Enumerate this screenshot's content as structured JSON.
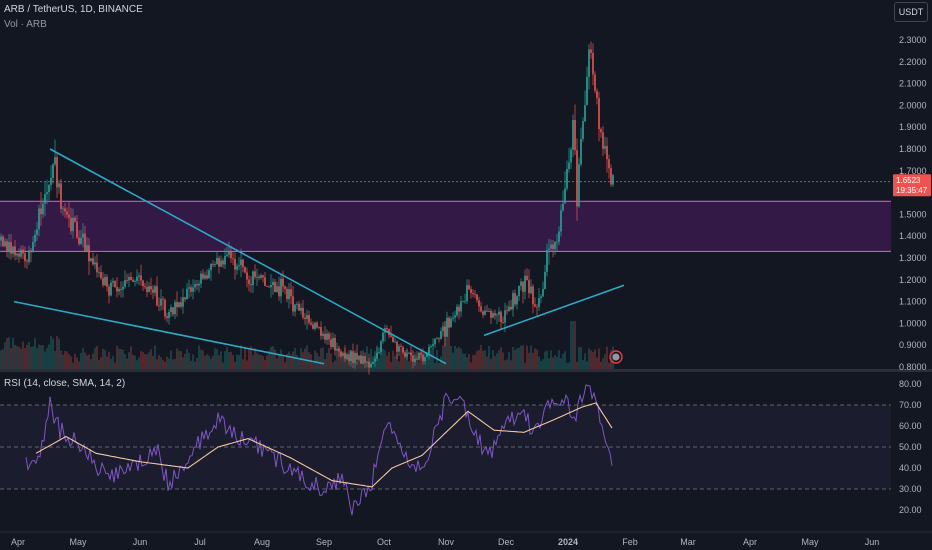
{
  "header": {
    "symbol": "ARB / TetherUS, 1D, BINANCE",
    "volume_label": "Vol · ARB",
    "currency": "USDT"
  },
  "rsi_panel": {
    "label": "RSI (14, close, SMA, 14, 2)"
  },
  "current_price": {
    "price": "1.6523",
    "countdown": "19:35:47"
  },
  "colors": {
    "background": "#131722",
    "up": "#26a69a",
    "down": "#ef5350",
    "trendline": "#2fa8c8",
    "zone_fill": "#3a1a4c",
    "zone_line": "#d24fd0",
    "rsi": "#7e57c2",
    "rsi_ma": "#f3c6a0"
  },
  "chart_data": [
    {
      "type": "candlestick",
      "title": "ARB / TetherUS, 1D, BINANCE",
      "y_ticks": [
        "2.3000",
        "2.2000",
        "2.1000",
        "2.0000",
        "1.9000",
        "1.8000",
        "1.7000",
        "1.5000",
        "1.4000",
        "1.3000",
        "1.2000",
        "1.1000",
        "1.0000",
        "0.9000",
        "0.8000"
      ],
      "x_ticks": [
        "Apr",
        "May",
        "Jun",
        "Jul",
        "Aug",
        "Sep",
        "Oct",
        "Nov",
        "Dec",
        "2024",
        "Feb",
        "Mar",
        "Apr",
        "May",
        "Jun"
      ],
      "ylim": [
        0.8,
        2.42
      ],
      "approx_close_path": [
        {
          "date": "2023-03-23",
          "value": 1.38
        },
        {
          "date": "2023-04-05",
          "value": 1.3
        },
        {
          "date": "2023-04-15",
          "value": 1.62
        },
        {
          "date": "2023-04-18",
          "value": 1.75
        },
        {
          "date": "2023-04-23",
          "value": 1.52
        },
        {
          "date": "2023-05-01",
          "value": 1.4
        },
        {
          "date": "2023-05-15",
          "value": 1.17
        },
        {
          "date": "2023-06-05",
          "value": 1.19
        },
        {
          "date": "2023-06-15",
          "value": 1.03
        },
        {
          "date": "2023-06-25",
          "value": 1.16
        },
        {
          "date": "2023-07-15",
          "value": 1.32
        },
        {
          "date": "2023-07-25",
          "value": 1.22
        },
        {
          "date": "2023-08-10",
          "value": 1.16
        },
        {
          "date": "2023-08-25",
          "value": 1.01
        },
        {
          "date": "2023-09-10",
          "value": 0.86
        },
        {
          "date": "2023-09-25",
          "value": 0.82
        },
        {
          "date": "2023-10-01",
          "value": 0.96
        },
        {
          "date": "2023-10-10",
          "value": 0.87
        },
        {
          "date": "2023-10-20",
          "value": 0.84
        },
        {
          "date": "2023-11-05",
          "value": 1.04
        },
        {
          "date": "2023-11-12",
          "value": 1.15
        },
        {
          "date": "2023-11-20",
          "value": 1.05
        },
        {
          "date": "2023-11-28",
          "value": 1.03
        },
        {
          "date": "2023-12-05",
          "value": 1.12
        },
        {
          "date": "2023-12-10",
          "value": 1.21
        },
        {
          "date": "2023-12-15",
          "value": 1.09
        },
        {
          "date": "2023-12-18",
          "value": 1.12
        },
        {
          "date": "2023-12-22",
          "value": 1.4
        },
        {
          "date": "2023-12-25",
          "value": 1.34
        },
        {
          "date": "2023-12-30",
          "value": 1.62
        },
        {
          "date": "2024-01-03",
          "value": 1.9
        },
        {
          "date": "2024-01-05",
          "value": 1.6
        },
        {
          "date": "2024-01-08",
          "value": 1.96
        },
        {
          "date": "2024-01-11",
          "value": 2.26
        },
        {
          "date": "2024-01-13",
          "value": 2.12
        },
        {
          "date": "2024-01-16",
          "value": 1.93
        },
        {
          "date": "2024-01-19",
          "value": 1.82
        },
        {
          "date": "2024-01-23",
          "value": 1.65
        }
      ],
      "volume_spikes": [
        {
          "date": "2023-11-01",
          "value": 1.0
        },
        {
          "date": "2024-01-03",
          "value": 1.0
        }
      ],
      "annotations": {
        "trendlines": [
          {
            "from": {
              "date": "2023-04-17",
              "value": 1.8
            },
            "to": {
              "date": "2023-11-01",
              "value": 0.815
            }
          },
          {
            "from": {
              "date": "2023-03-30",
              "value": 1.1
            },
            "to": {
              "date": "2023-09-01",
              "value": 0.815
            }
          },
          {
            "from": {
              "date": "2023-11-20",
              "value": 0.945
            },
            "to": {
              "date": "2024-01-29",
              "value": 1.175
            }
          }
        ],
        "zone": {
          "from": {
            "date": "2023-03-23"
          },
          "to": {
            "date": "2024-06-30"
          },
          "y_top": 1.56,
          "y_bottom": 1.33
        },
        "dotted_price_line": 1.65
      }
    },
    {
      "type": "line",
      "title": "RSI (14, close, SMA, 14, 2)",
      "y_ticks": [
        "80.00",
        "70.00",
        "60.00",
        "50.00",
        "40.00",
        "30.00",
        "20.00"
      ],
      "ylim": [
        14,
        86
      ],
      "bands": [
        70,
        50,
        30
      ],
      "series": [
        {
          "name": "RSI",
          "values": [
            {
              "date": "2023-04-05",
              "value": 42
            },
            {
              "date": "2023-04-12",
              "value": 48
            },
            {
              "date": "2023-04-17",
              "value": 70
            },
            {
              "date": "2023-04-22",
              "value": 58
            },
            {
              "date": "2023-05-01",
              "value": 52
            },
            {
              "date": "2023-05-15",
              "value": 36
            },
            {
              "date": "2023-06-01",
              "value": 42
            },
            {
              "date": "2023-06-10",
              "value": 48
            },
            {
              "date": "2023-06-15",
              "value": 32
            },
            {
              "date": "2023-06-25",
              "value": 45
            },
            {
              "date": "2023-07-10",
              "value": 64
            },
            {
              "date": "2023-07-20",
              "value": 55
            },
            {
              "date": "2023-08-05",
              "value": 47
            },
            {
              "date": "2023-08-20",
              "value": 36
            },
            {
              "date": "2023-09-01",
              "value": 29
            },
            {
              "date": "2023-09-10",
              "value": 35
            },
            {
              "date": "2023-09-15",
              "value": 20
            },
            {
              "date": "2023-09-25",
              "value": 34
            },
            {
              "date": "2023-10-01",
              "value": 62
            },
            {
              "date": "2023-10-10",
              "value": 48
            },
            {
              "date": "2023-10-20",
              "value": 38
            },
            {
              "date": "2023-11-01",
              "value": 72
            },
            {
              "date": "2023-11-08",
              "value": 75
            },
            {
              "date": "2023-11-15",
              "value": 58
            },
            {
              "date": "2023-11-22",
              "value": 45
            },
            {
              "date": "2023-12-01",
              "value": 60
            },
            {
              "date": "2023-12-10",
              "value": 67
            },
            {
              "date": "2023-12-15",
              "value": 55
            },
            {
              "date": "2023-12-20",
              "value": 68
            },
            {
              "date": "2023-12-28",
              "value": 74
            },
            {
              "date": "2024-01-05",
              "value": 64
            },
            {
              "date": "2024-01-10",
              "value": 81
            },
            {
              "date": "2024-01-15",
              "value": 70
            },
            {
              "date": "2024-01-18",
              "value": 56
            },
            {
              "date": "2024-01-23",
              "value": 42
            }
          ]
        },
        {
          "name": "RSI-based MA",
          "values": [
            {
              "date": "2023-04-10",
              "value": 47
            },
            {
              "date": "2023-04-25",
              "value": 55
            },
            {
              "date": "2023-05-10",
              "value": 47
            },
            {
              "date": "2023-06-01",
              "value": 43
            },
            {
              "date": "2023-06-25",
              "value": 40
            },
            {
              "date": "2023-07-10",
              "value": 50
            },
            {
              "date": "2023-07-25",
              "value": 54
            },
            {
              "date": "2023-08-15",
              "value": 45
            },
            {
              "date": "2023-09-05",
              "value": 34
            },
            {
              "date": "2023-09-25",
              "value": 31
            },
            {
              "date": "2023-10-05",
              "value": 40
            },
            {
              "date": "2023-10-20",
              "value": 46
            },
            {
              "date": "2023-11-01",
              "value": 57
            },
            {
              "date": "2023-11-12",
              "value": 67
            },
            {
              "date": "2023-11-25",
              "value": 58
            },
            {
              "date": "2023-12-10",
              "value": 57
            },
            {
              "date": "2023-12-25",
              "value": 63
            },
            {
              "date": "2024-01-08",
              "value": 69
            },
            {
              "date": "2024-01-15",
              "value": 71
            },
            {
              "date": "2024-01-23",
              "value": 59
            }
          ]
        }
      ]
    }
  ]
}
